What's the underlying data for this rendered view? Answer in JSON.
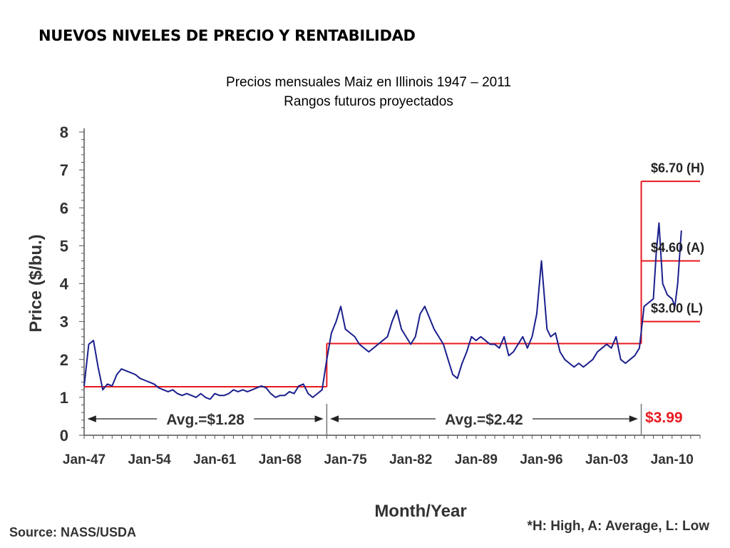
{
  "slide": {
    "title": "NUEVOS NIVELES DE PRECIO Y RENTABILIDAD"
  },
  "chart_data": {
    "type": "line",
    "title": "Precios mensuales Maiz en Illinois 1947 – 2011",
    "subtitle": "Rangos futuros proyectados",
    "xlabel": "Month/Year",
    "ylabel": "Price ($/bu.)",
    "ylim": [
      0,
      8
    ],
    "xlim": [
      1947,
      2013
    ],
    "y_ticks": [
      "0",
      "1",
      "2",
      "3",
      "4",
      "5",
      "6",
      "7",
      "8"
    ],
    "x_ticks": [
      {
        "label": "Jan-47",
        "x": 1947
      },
      {
        "label": "Jan-54",
        "x": 1954
      },
      {
        "label": "Jan-61",
        "x": 1961
      },
      {
        "label": "Jan-68",
        "x": 1968
      },
      {
        "label": "Jan-75",
        "x": 1975
      },
      {
        "label": "Jan-82",
        "x": 1982
      },
      {
        "label": "Jan-89",
        "x": 1989
      },
      {
        "label": "Jan-96",
        "x": 1996
      },
      {
        "label": "Jan-03",
        "x": 2003
      },
      {
        "label": "Jan-10",
        "x": 2010
      }
    ],
    "grid": false,
    "series": [
      {
        "color": "#1a1f8c",
        "x": [
          1947.0,
          1947.5,
          1948.0,
          1948.5,
          1949.0,
          1949.5,
          1950.0,
          1950.5,
          1951.0,
          1951.5,
          1952.0,
          1952.5,
          1953.0,
          1953.5,
          1954.0,
          1954.5,
          1955.0,
          1955.5,
          1956.0,
          1956.5,
          1957.0,
          1957.5,
          1958.0,
          1958.5,
          1959.0,
          1959.5,
          1960.0,
          1960.5,
          1961.0,
          1961.5,
          1962.0,
          1962.5,
          1963.0,
          1963.5,
          1964.0,
          1964.5,
          1965.0,
          1965.5,
          1966.0,
          1966.5,
          1967.0,
          1967.5,
          1968.0,
          1968.5,
          1969.0,
          1969.5,
          1970.0,
          1970.5,
          1971.0,
          1971.5,
          1972.0,
          1972.5,
          1973.0,
          1973.5,
          1974.0,
          1974.5,
          1975.0,
          1975.5,
          1976.0,
          1976.5,
          1977.0,
          1977.5,
          1978.0,
          1978.5,
          1979.0,
          1979.5,
          1980.0,
          1980.5,
          1981.0,
          1981.5,
          1982.0,
          1982.5,
          1983.0,
          1983.5,
          1984.0,
          1984.5,
          1985.0,
          1985.5,
          1986.0,
          1986.5,
          1987.0,
          1987.5,
          1988.0,
          1988.5,
          1989.0,
          1989.5,
          1990.0,
          1990.5,
          1991.0,
          1991.5,
          1992.0,
          1992.5,
          1993.0,
          1993.5,
          1994.0,
          1994.5,
          1995.0,
          1995.5,
          1996.0,
          1996.3,
          1996.6,
          1997.0,
          1997.5,
          1998.0,
          1998.5,
          1999.0,
          1999.5,
          2000.0,
          2000.5,
          2001.0,
          2001.5,
          2002.0,
          2002.5,
          2003.0,
          2003.5,
          2004.0,
          2004.5,
          2005.0,
          2005.5,
          2006.0,
          2006.5,
          2007.0,
          2007.5,
          2008.0,
          2008.3,
          2008.6,
          2009.0,
          2009.5,
          2010.0,
          2010.3,
          2010.6,
          2011.0
        ],
        "y": [
          1.3,
          2.4,
          2.5,
          1.8,
          1.2,
          1.35,
          1.3,
          1.6,
          1.75,
          1.7,
          1.65,
          1.6,
          1.5,
          1.45,
          1.4,
          1.35,
          1.25,
          1.2,
          1.15,
          1.2,
          1.1,
          1.05,
          1.1,
          1.05,
          1.0,
          1.1,
          1.0,
          0.95,
          1.1,
          1.05,
          1.05,
          1.1,
          1.2,
          1.15,
          1.2,
          1.15,
          1.2,
          1.25,
          1.3,
          1.25,
          1.1,
          1.0,
          1.05,
          1.05,
          1.15,
          1.1,
          1.3,
          1.35,
          1.1,
          1.0,
          1.1,
          1.2,
          2.0,
          2.7,
          3.0,
          3.4,
          2.8,
          2.7,
          2.6,
          2.4,
          2.3,
          2.2,
          2.3,
          2.4,
          2.5,
          2.6,
          3.0,
          3.3,
          2.8,
          2.6,
          2.4,
          2.6,
          3.2,
          3.4,
          3.1,
          2.8,
          2.6,
          2.4,
          2.0,
          1.6,
          1.5,
          1.9,
          2.2,
          2.6,
          2.5,
          2.6,
          2.5,
          2.4,
          2.4,
          2.3,
          2.6,
          2.1,
          2.2,
          2.4,
          2.6,
          2.3,
          2.6,
          3.2,
          4.6,
          3.7,
          2.8,
          2.6,
          2.7,
          2.2,
          2.0,
          1.9,
          1.8,
          1.9,
          1.8,
          1.9,
          2.0,
          2.2,
          2.3,
          2.4,
          2.3,
          2.6,
          2.0,
          1.9,
          2.0,
          2.1,
          2.3,
          3.4,
          3.5,
          3.6,
          4.8,
          5.6,
          4.0,
          3.7,
          3.6,
          3.4,
          4.0,
          5.4
        ]
      }
    ],
    "reference_lines": [
      {
        "x_start": 1947,
        "x_end": 1973,
        "y": 1.28
      },
      {
        "x_start": 1973,
        "x_end": 2006.7,
        "y": 2.42
      },
      {
        "x_start": 2006.7,
        "x_end": 2013,
        "y": 3.0
      },
      {
        "x_start": 2006.7,
        "x_end": 2013,
        "y": 4.6
      },
      {
        "x_start": 2006.7,
        "x_end": 2013,
        "y": 6.7
      }
    ],
    "ref_color": "#e8191f",
    "period_dividers": [
      1973,
      2006.7
    ],
    "range_labels": [
      {
        "text": "$6.70 (H)",
        "y": 7.05
      },
      {
        "text": "$4.60 (A)",
        "y": 4.95
      },
      {
        "text": "$3.00 (L)",
        "y": 3.35
      }
    ],
    "periods": [
      {
        "text": "Avg.=$1.28",
        "x_start": 1947,
        "x_end": 1973
      },
      {
        "text": "Avg.=$2.42",
        "x_start": 1973,
        "x_end": 2006.7
      }
    ],
    "highlight": {
      "text": "$3.99",
      "color": "#e8191f"
    },
    "footnotes": {
      "source": "Source: NASS/USDA",
      "legend": "*H: High, A: Average, L: Low"
    }
  }
}
